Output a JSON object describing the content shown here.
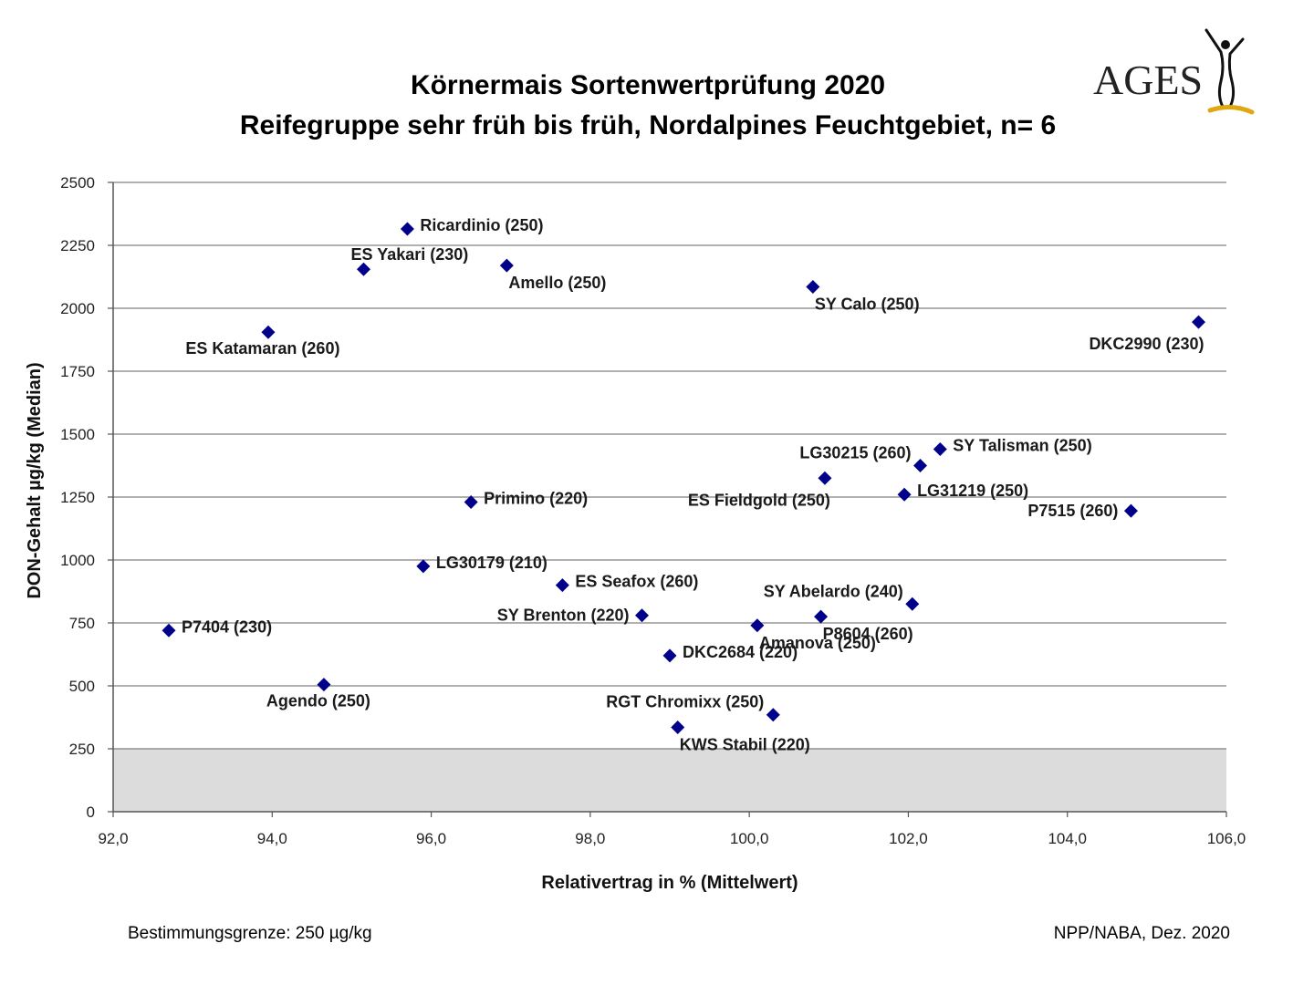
{
  "header": {
    "title_line1": "Körnermais Sortenwertprüfung 2020",
    "title_line2": "Reifegruppe sehr früh bis früh, Nordalpines Feuchtgebiet, n= 6",
    "logo_text": "AGES"
  },
  "footer": {
    "left": "Bestimmungsgrenze: 250 µg/kg",
    "right": "NPP/NABA, Dez. 2020"
  },
  "colors": {
    "marker": "#00008B",
    "gridline": "#808080",
    "detection_band": "#DCDCDC",
    "logo_gold": "#E0A810"
  },
  "chart_data": {
    "type": "scatter",
    "xlabel": "Relativertrag in % (Mittelwert)",
    "ylabel": "DON-Gehalt µg/kg (Median)",
    "xlim": [
      92,
      106
    ],
    "ylim": [
      0,
      2500
    ],
    "xticks": [
      92,
      94,
      96,
      98,
      100,
      102,
      104,
      106
    ],
    "yticks": [
      0,
      250,
      500,
      750,
      1000,
      1250,
      1500,
      1750,
      2000,
      2250,
      2500
    ],
    "xtick_labels": [
      "92,0",
      "94,0",
      "96,0",
      "98,0",
      "100,0",
      "102,0",
      "104,0",
      "106,0"
    ],
    "ytick_labels": [
      "0",
      "250",
      "500",
      "750",
      "1000",
      "1250",
      "1500",
      "1750",
      "2000",
      "2250",
      "2500"
    ],
    "grid": "horizontal",
    "shaded_band": {
      "y_from": 0,
      "y_to": 250,
      "meaning": "Bestimmungsgrenze"
    },
    "points": [
      {
        "label": "Ricardinio (250)",
        "x": 95.7,
        "y": 2315,
        "label_pos": "right"
      },
      {
        "label": "ES Yakari (230)",
        "x": 95.15,
        "y": 2155,
        "label_pos": "above-right"
      },
      {
        "label": "Amello (250)",
        "x": 96.95,
        "y": 2170,
        "label_pos": "below-right"
      },
      {
        "label": "SY Calo (250)",
        "x": 100.8,
        "y": 2085,
        "label_pos": "below-right"
      },
      {
        "label": "ES Katamaran (260)",
        "x": 93.95,
        "y": 1905,
        "label_pos": "below-center"
      },
      {
        "label": "DKC2990 (230)",
        "x": 105.65,
        "y": 1945,
        "label_pos": "below-left"
      },
      {
        "label": "SY Talisman (250)",
        "x": 102.4,
        "y": 1440,
        "label_pos": "right"
      },
      {
        "label": "LG30215 (260)",
        "x": 102.15,
        "y": 1375,
        "label_pos": "left-up"
      },
      {
        "label": "ES Fieldgold (250)",
        "x": 100.95,
        "y": 1325,
        "label_pos": "below-left"
      },
      {
        "label": "LG31219 (250)",
        "x": 101.95,
        "y": 1260,
        "label_pos": "right"
      },
      {
        "label": "P7515 (260)",
        "x": 104.8,
        "y": 1195,
        "label_pos": "left"
      },
      {
        "label": "Primino (220)",
        "x": 96.5,
        "y": 1230,
        "label_pos": "right"
      },
      {
        "label": "LG30179 (210)",
        "x": 95.9,
        "y": 975,
        "label_pos": "right"
      },
      {
        "label": "ES Seafox (260)",
        "x": 97.65,
        "y": 900,
        "label_pos": "right"
      },
      {
        "label": "SY Abelardo (240)",
        "x": 102.05,
        "y": 825,
        "label_pos": "left-up"
      },
      {
        "label": "SY Brenton (220)",
        "x": 98.65,
        "y": 780,
        "label_pos": "left"
      },
      {
        "label": "P8604 (260)",
        "x": 100.9,
        "y": 775,
        "label_pos": "below-right"
      },
      {
        "label": "Amanova (250)",
        "x": 100.1,
        "y": 740,
        "label_pos": "below-right"
      },
      {
        "label": "P7404 (230)",
        "x": 92.7,
        "y": 720,
        "label_pos": "right"
      },
      {
        "label": "DKC2684 (220)",
        "x": 99.0,
        "y": 620,
        "label_pos": "right"
      },
      {
        "label": "Agendo (250)",
        "x": 94.65,
        "y": 505,
        "label_pos": "below-center"
      },
      {
        "label": "RGT Chromixx (250)",
        "x": 100.3,
        "y": 385,
        "label_pos": "left-up"
      },
      {
        "label": "KWS Stabil (220)",
        "x": 99.1,
        "y": 335,
        "label_pos": "below-right"
      }
    ]
  }
}
